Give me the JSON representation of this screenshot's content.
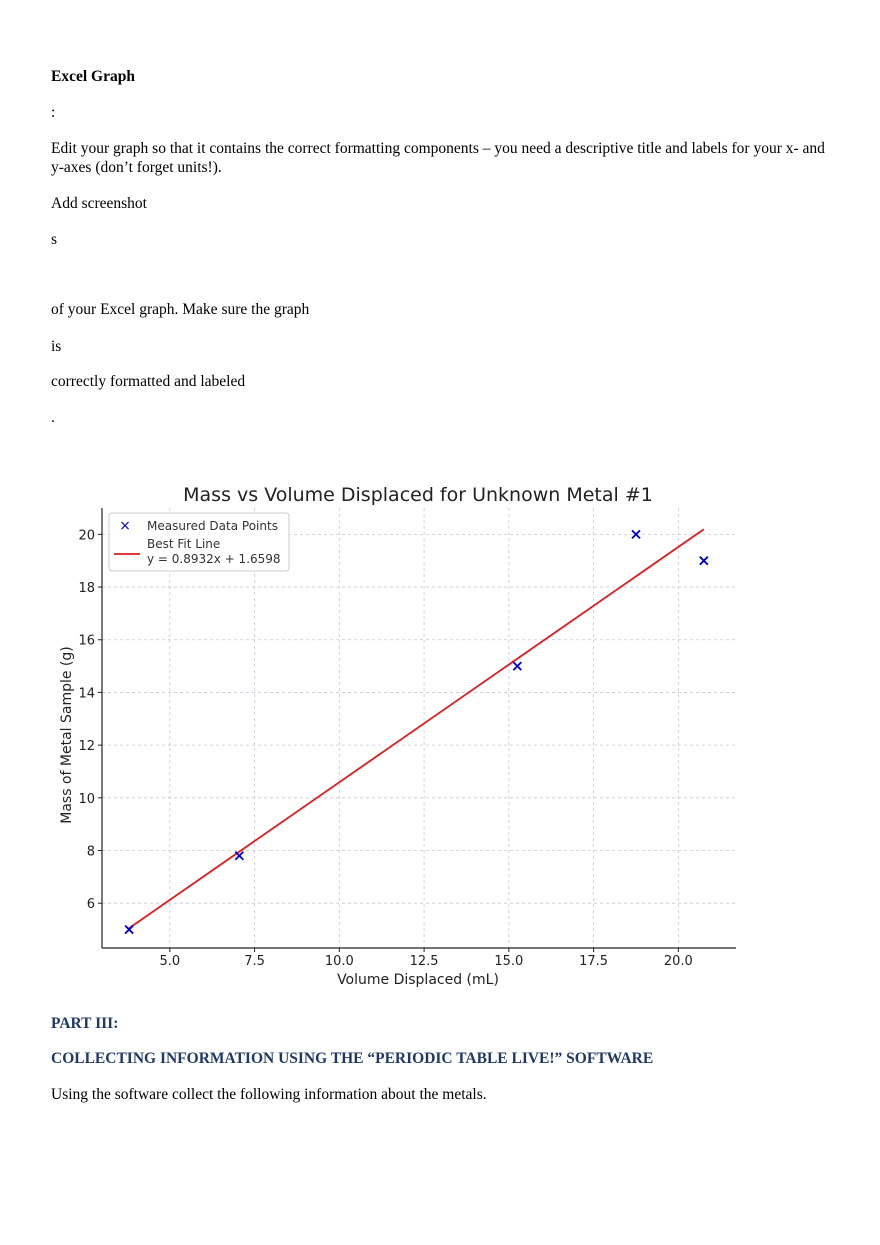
{
  "document": {
    "heading": "Excel Graph",
    "colon": ":",
    "instruction": "Edit your graph so that it contains the correct formatting components – you need a descriptive title and labels for your x- and y-axes (don’t forget units!).",
    "add_screenshot": "Add screenshot",
    "s_fragment": "s",
    "of_graph": "of your Excel graph. Make sure the graph",
    "is_fragment": "is",
    "correctly": "correctly formatted and labeled",
    "period": ".",
    "part_heading": "PART III:",
    "section_heading": "COLLECTING INFORMATION USING THE “PERIODIC TABLE LIVE!” SOFTWARE",
    "closing": "Using the software collect the following information about the metals."
  },
  "colors": {
    "points": "#0000cc",
    "fit_line": "#e31a1c",
    "grid": "#c8c8d8",
    "heading_navy": "#1f3864"
  },
  "chart_data": {
    "type": "scatter",
    "title": "Mass vs Volume Displaced for Unknown Metal #1",
    "xlabel": "Volume Displaced (mL)",
    "ylabel": "Mass of Metal Sample (g)",
    "xlim": [
      3,
      21.7
    ],
    "ylim": [
      4.3,
      21
    ],
    "x_ticks": [
      5.0,
      7.5,
      10.0,
      12.5,
      15.0,
      17.5,
      20.0
    ],
    "x_tick_labels": [
      "5.0",
      "7.5",
      "10.0",
      "12.5",
      "15.0",
      "17.5",
      "20.0"
    ],
    "y_ticks": [
      6,
      8,
      10,
      12,
      14,
      16,
      18,
      20
    ],
    "y_tick_labels": [
      "6",
      "8",
      "10",
      "12",
      "14",
      "16",
      "18",
      "20"
    ],
    "grid": true,
    "legend_position": "top-left",
    "series": [
      {
        "name": "Measured Data Points",
        "marker": "x",
        "color": "#0000cc",
        "x": [
          3.8,
          7.05,
          15.25,
          18.75,
          20.75
        ],
        "y": [
          5.0,
          7.8,
          15.0,
          20.0,
          19.0
        ]
      },
      {
        "name": "Best Fit Line",
        "label_line2": "y = 0.8932x + 1.6598",
        "type": "line",
        "color": "#e31a1c",
        "slope": 0.8932,
        "intercept": 1.6598,
        "x_range": [
          3.8,
          20.75
        ]
      }
    ]
  }
}
